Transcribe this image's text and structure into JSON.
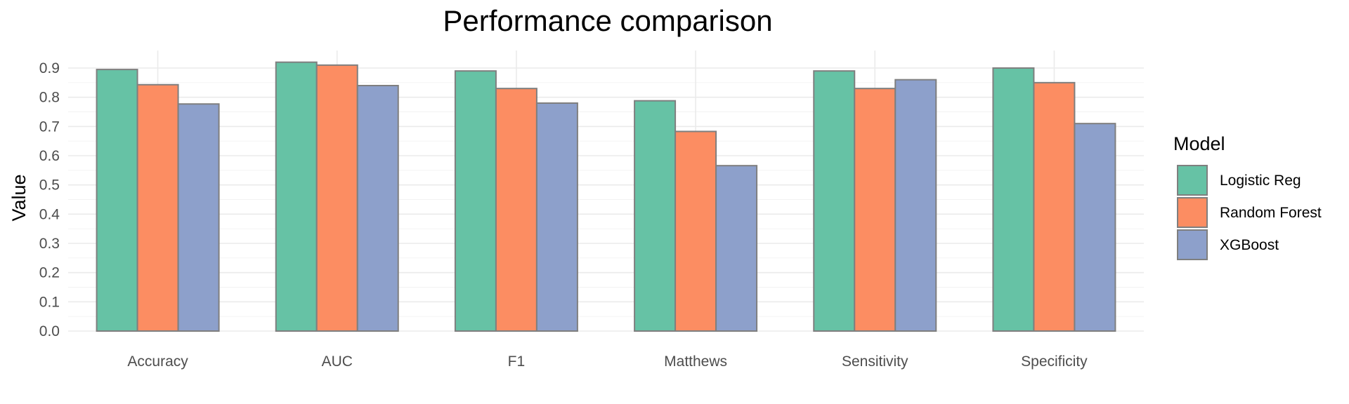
{
  "chart_data": {
    "type": "bar",
    "title": "Performance comparison",
    "xlabel": "",
    "ylabel": "Value",
    "ylim": [
      0,
      0.95
    ],
    "yticks": [
      "0.0",
      "0.1",
      "0.2",
      "0.3",
      "0.4",
      "0.5",
      "0.6",
      "0.7",
      "0.8",
      "0.9"
    ],
    "categories": [
      "Accuracy",
      "AUC",
      "F1",
      "Matthews",
      "Sensitivity",
      "Specificity"
    ],
    "series": [
      {
        "name": "Logistic Reg",
        "color": "#66c2a5",
        "values": [
          0.895,
          0.92,
          0.89,
          0.788,
          0.89,
          0.9
        ]
      },
      {
        "name": "Random Forest",
        "color": "#fc8d62",
        "values": [
          0.843,
          0.91,
          0.83,
          0.683,
          0.83,
          0.85
        ]
      },
      {
        "name": "XGBoost",
        "color": "#8da0cb",
        "values": [
          0.777,
          0.84,
          0.78,
          0.566,
          0.86,
          0.71
        ]
      }
    ],
    "legend": {
      "title": "Model",
      "position": "right"
    },
    "grid": true
  }
}
